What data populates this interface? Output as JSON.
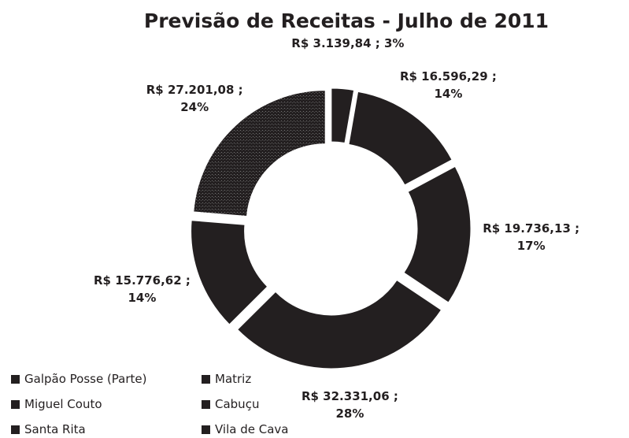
{
  "chart_data": {
    "type": "donut",
    "title": "Previsão de Receitas - Julho de 2011",
    "categories": [
      "Galpão Posse (Parte)",
      "Matriz",
      "Miguel Couto",
      "Cabuçu",
      "Santa Rita",
      "Vila de Cava"
    ],
    "values": [
      3139.84,
      16596.29,
      19736.13,
      32331.06,
      15776.62,
      27201.08
    ],
    "value_labels": [
      "R$ 3.139,84 ; 3%",
      "R$ 16.596,29 ; 14%",
      "R$ 19.736,13 ; 17%",
      "R$ 32.331,06 ; 28%",
      "R$ 15.776,62 ; 14%",
      "R$ 27.201,08 ; 24%"
    ],
    "color": "#231f20"
  }
}
